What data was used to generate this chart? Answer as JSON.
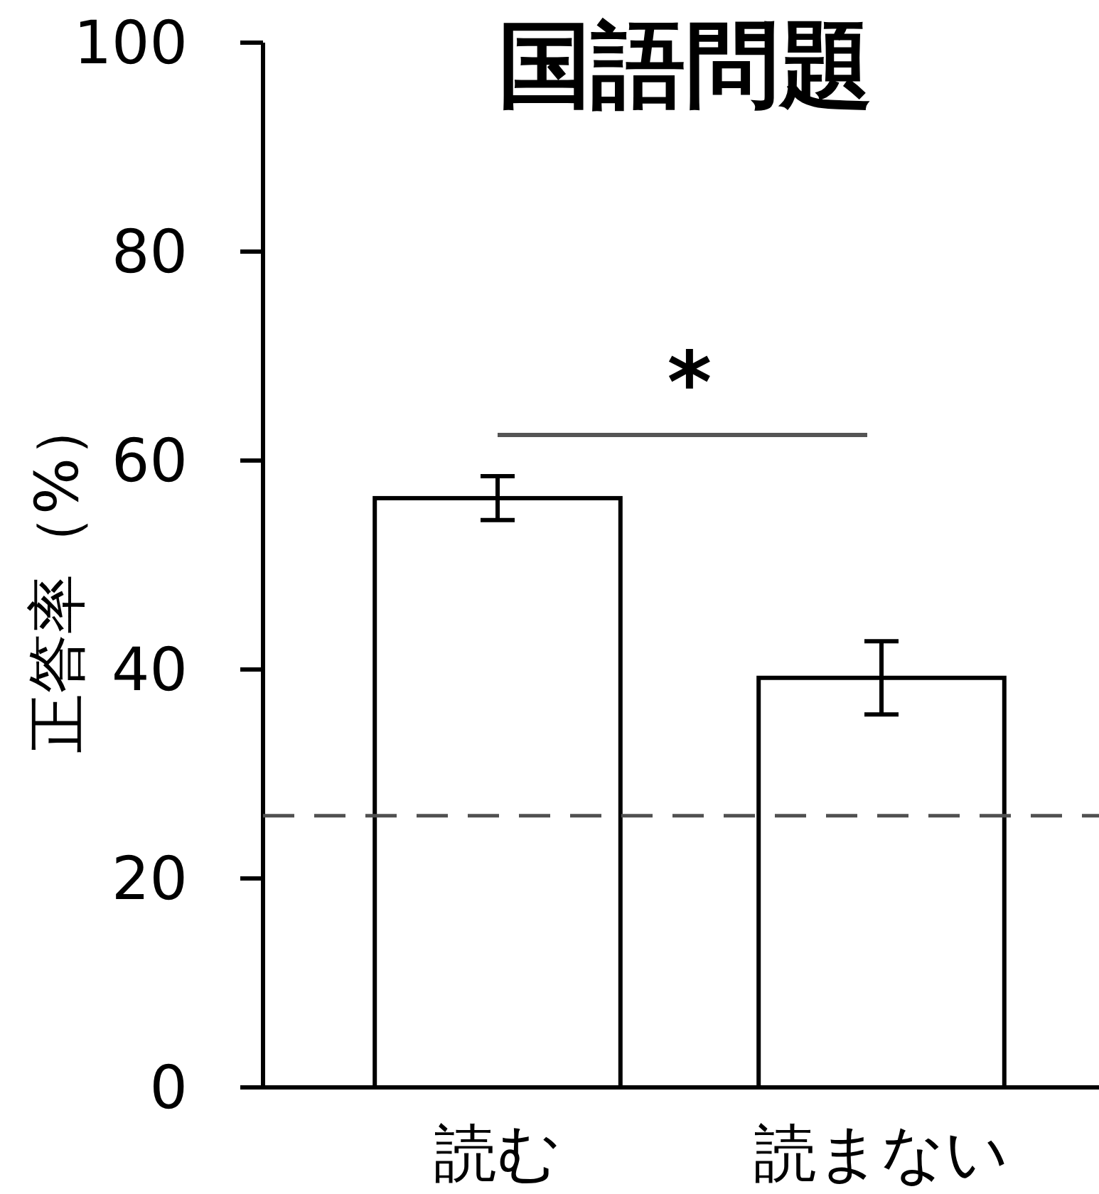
{
  "chart_data": {
    "type": "bar",
    "title": "国語問題",
    "ylabel": "正答率（%）",
    "categories": [
      "読む",
      "読まない"
    ],
    "values": [
      56.4,
      39.2
    ],
    "errors": [
      2.1,
      3.5
    ],
    "color": "#ffffff",
    "ylim": [
      0,
      100
    ],
    "yticks": [
      0,
      20,
      40,
      60,
      80,
      100
    ],
    "ref_lines": [
      {
        "axis": "y",
        "value": 26,
        "line_style": "dashed",
        "color": "#505050"
      }
    ],
    "annotations": [
      "*"
    ]
  }
}
